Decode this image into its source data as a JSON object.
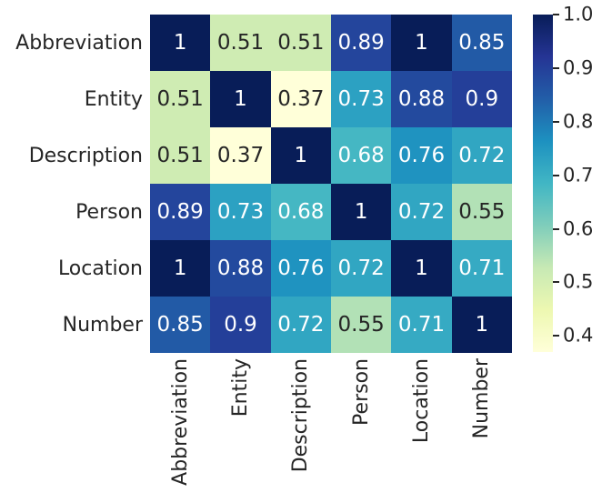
{
  "figure": {
    "background": "#ffffff",
    "text_color": "#262626",
    "annotation_light_color": "#ffffff"
  },
  "chart_data": {
    "type": "heatmap",
    "title": "",
    "xlabel": "",
    "ylabel": "",
    "categories": [
      "Abbreviation",
      "Entity",
      "Description",
      "Person",
      "Location",
      "Number"
    ],
    "matrix": [
      [
        1,
        0.51,
        0.51,
        0.89,
        1,
        0.85
      ],
      [
        0.51,
        1,
        0.37,
        0.73,
        0.88,
        0.9
      ],
      [
        0.51,
        0.37,
        1,
        0.68,
        0.76,
        0.72
      ],
      [
        0.89,
        0.73,
        0.68,
        1,
        0.72,
        0.55
      ],
      [
        1,
        0.88,
        0.76,
        0.72,
        1,
        0.71
      ],
      [
        0.85,
        0.9,
        0.72,
        0.55,
        0.71,
        1
      ]
    ],
    "annotated": true,
    "grid": false,
    "vmin": 0.37,
    "vmax": 1.0,
    "colormap": {
      "name": "YlGnBu",
      "anchors": [
        {
          "pos": 0.0,
          "color": "#ffffd9"
        },
        {
          "pos": 0.125,
          "color": "#edf8b1"
        },
        {
          "pos": 0.25,
          "color": "#c7e9b4"
        },
        {
          "pos": 0.375,
          "color": "#7fcdbb"
        },
        {
          "pos": 0.5,
          "color": "#41b6c4"
        },
        {
          "pos": 0.625,
          "color": "#1d91c0"
        },
        {
          "pos": 0.75,
          "color": "#225ea8"
        },
        {
          "pos": 0.875,
          "color": "#253494"
        },
        {
          "pos": 1.0,
          "color": "#081d58"
        }
      ]
    },
    "colorbar": {
      "position": "right",
      "tick_labels": [
        "1.0",
        "0.9",
        "0.8",
        "0.7",
        "0.6",
        "0.5",
        "0.4"
      ]
    }
  }
}
